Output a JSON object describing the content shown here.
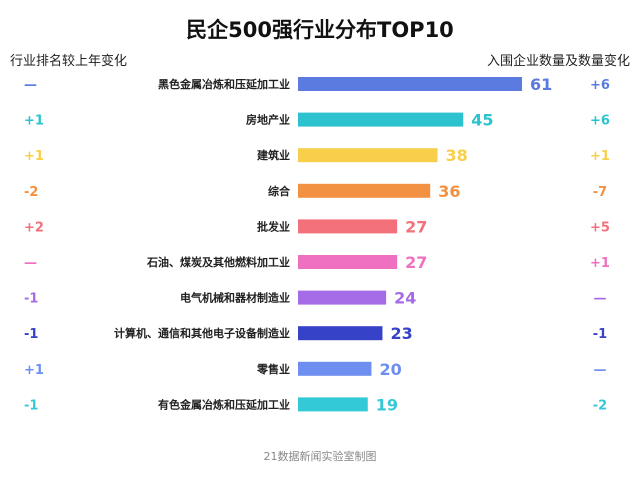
{
  "chart_data": {
    "type": "bar",
    "title": "民企500强行业分布TOP10",
    "left_header": "行业排名较上年变化",
    "right_header": "入围企业数量及数量变化",
    "source": "21数据新闻实验室制图",
    "categories": [
      "黑色金属冶炼和压延加工业",
      "房地产业",
      "建筑业",
      "综合",
      "批发业",
      "石油、煤炭及其他燃料加工业",
      "电气机械和器材制造业",
      "计算机、通信和其他电子设备制造业",
      "零售业",
      "有色金属冶炼和压延加工业"
    ],
    "values": [
      61,
      45,
      38,
      36,
      27,
      27,
      24,
      23,
      20,
      19
    ],
    "rank_change": [
      "—",
      "+1",
      "+1",
      "-2",
      "+2",
      "—",
      "-1",
      "-1",
      "+1",
      "-1"
    ],
    "count_change": [
      "+6",
      "+6",
      "+1",
      "-7",
      "+5",
      "+1",
      "—",
      "-1",
      "—",
      "-2"
    ],
    "colors": [
      "#5b7be0",
      "#2cc3cf",
      "#f7cf4a",
      "#f39143",
      "#f2717a",
      "#ef6fc0",
      "#a66be6",
      "#3643c8",
      "#6f8ff0",
      "#33c9d6"
    ],
    "xlim": [
      0,
      61
    ]
  }
}
